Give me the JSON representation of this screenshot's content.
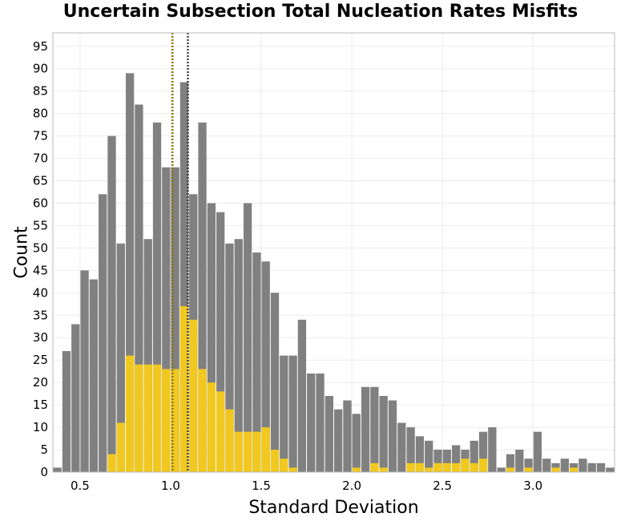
{
  "chart_data": {
    "type": "bar",
    "title": "Uncertain Subsection Total Nucleation Rates Misfits",
    "xlabel": "Standard Deviation",
    "ylabel": "Count",
    "xlim": [
      0.35,
      3.45
    ],
    "ylim": [
      0,
      98
    ],
    "xticks": [
      0.5,
      1.0,
      1.5,
      2.0,
      2.5,
      3.0
    ],
    "xtick_labels": [
      "0.5",
      "1.0",
      "1.5",
      "2.0",
      "2.5",
      "3.0"
    ],
    "yticks": [
      0,
      5,
      10,
      15,
      20,
      25,
      30,
      35,
      40,
      45,
      50,
      55,
      60,
      65,
      70,
      75,
      80,
      85,
      90,
      95
    ],
    "bin_width": 0.05,
    "x": [
      0.375,
      0.425,
      0.475,
      0.525,
      0.575,
      0.625,
      0.675,
      0.725,
      0.775,
      0.825,
      0.875,
      0.925,
      0.975,
      1.025,
      1.075,
      1.125,
      1.175,
      1.225,
      1.275,
      1.325,
      1.375,
      1.425,
      1.475,
      1.525,
      1.575,
      1.625,
      1.675,
      1.725,
      1.775,
      1.825,
      1.875,
      1.925,
      1.975,
      2.025,
      2.075,
      2.125,
      2.175,
      2.225,
      2.275,
      2.325,
      2.375,
      2.425,
      2.475,
      2.525,
      2.575,
      2.625,
      2.675,
      2.725,
      2.775,
      2.825,
      2.875,
      2.925,
      2.975,
      3.025,
      3.075,
      3.125,
      3.175,
      3.225,
      3.275,
      3.325,
      3.375,
      3.425
    ],
    "series": [
      {
        "color": "#808080",
        "values": [
          1,
          27,
          33,
          45,
          43,
          62,
          75,
          51,
          89,
          82,
          52,
          78,
          68,
          68,
          87,
          62,
          78,
          60,
          58,
          51,
          52,
          60,
          49,
          47,
          40,
          26,
          26,
          34,
          22,
          22,
          17,
          14,
          16,
          13,
          19,
          19,
          17,
          16,
          11,
          10,
          8,
          7,
          5,
          5,
          6,
          5,
          7,
          9,
          10,
          1,
          4,
          5,
          3,
          9,
          3,
          2,
          3,
          2,
          3,
          2,
          2,
          1
        ]
      },
      {
        "color": "#f0c820",
        "values": [
          0,
          0,
          0,
          0,
          0,
          0,
          4,
          11,
          26,
          24,
          24,
          24,
          23,
          23,
          37,
          34,
          23,
          20,
          18,
          14,
          9,
          9,
          9,
          10,
          5,
          3,
          1,
          0,
          0,
          0,
          0,
          0,
          0,
          1,
          0,
          2,
          1,
          0,
          0,
          2,
          2,
          1,
          2,
          2,
          2,
          3,
          2,
          3,
          0,
          0,
          1,
          0,
          1,
          0,
          0,
          1,
          0,
          1,
          0,
          0,
          0,
          0
        ]
      }
    ],
    "vlines": [
      {
        "x": 1.01,
        "color": "#8a7000",
        "style": "dotted"
      },
      {
        "x": 1.095,
        "color": "#404040",
        "style": "dotted"
      }
    ],
    "grid": true,
    "grid_color": "#ebebeb"
  }
}
